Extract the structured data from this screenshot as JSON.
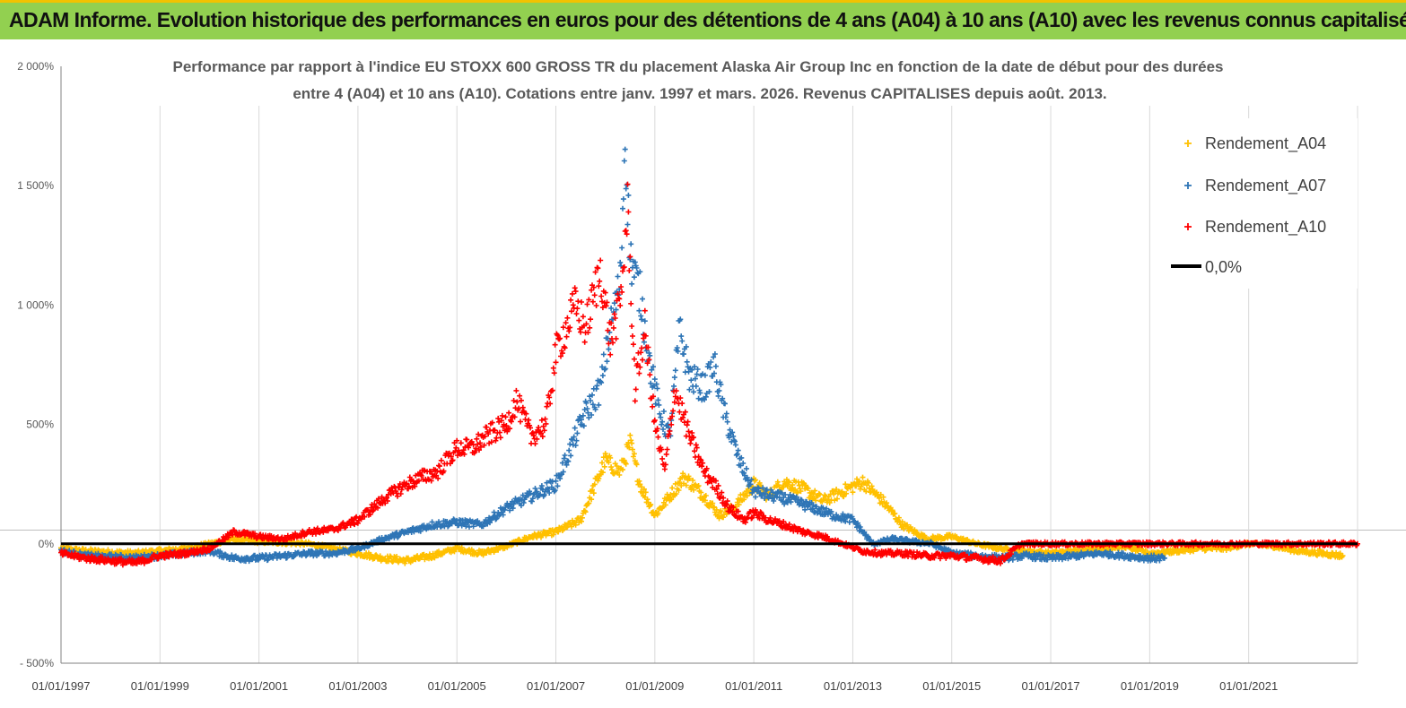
{
  "header": {
    "title": "ADAM Informe. Evolution historique des performances en euros pour des détentions de 4 ans (A04) à 10 ans (A10) avec les revenus connus capitalisés"
  },
  "colors": {
    "banner": "#92d050",
    "A04": "#ffc000",
    "A07": "#2e75b6",
    "A10": "#ff0000",
    "zero": "#000000"
  },
  "chart_data": {
    "type": "scatter",
    "title_line1": "Performance par rapport à l'indice EU STOXX 600 GROSS TR  du placement Alaska Air Group Inc en fonction de la date de début pour des durées",
    "title_line2": "entre 4 (A04) et 10 ans (A10). Cotations entre janv. 1997 et mars. 2026. Revenus CAPITALISES depuis août. 2013.",
    "xlabel": "",
    "ylabel": "",
    "xlim": [
      1997.0,
      2023.2
    ],
    "ylim": [
      -500,
      2000
    ],
    "y_ticks": [
      {
        "value": -500,
        "label": "- 500%"
      },
      {
        "value": 0,
        "label": "0%"
      },
      {
        "value": 500,
        "label": "500%"
      },
      {
        "value": 1000,
        "label": "1 000%"
      },
      {
        "value": 1500,
        "label": "1 500%"
      },
      {
        "value": 2000,
        "label": "2 000%"
      }
    ],
    "x_ticks": [
      {
        "value": 1997,
        "label": "01/01/1997"
      },
      {
        "value": 1999,
        "label": "01/01/1999"
      },
      {
        "value": 2001,
        "label": "01/01/2001"
      },
      {
        "value": 2003,
        "label": "01/01/2003"
      },
      {
        "value": 2005,
        "label": "01/01/2005"
      },
      {
        "value": 2007,
        "label": "01/01/2007"
      },
      {
        "value": 2009,
        "label": "01/01/2009"
      },
      {
        "value": 2011,
        "label": "01/01/2011"
      },
      {
        "value": 2013,
        "label": "01/01/2013"
      },
      {
        "value": 2015,
        "label": "01/01/2015"
      },
      {
        "value": 2017,
        "label": "01/01/2017"
      },
      {
        "value": 2019,
        "label": "01/01/2019"
      },
      {
        "value": 2021,
        "label": "01/01/2021"
      }
    ],
    "grid": "vertical",
    "legend_position": "top-right",
    "legend": [
      "Rendement_A04",
      "Rendement_A07",
      "Rendement_A10",
      "0,0%"
    ],
    "series": [
      {
        "name": "Rendement_A04",
        "marker": "+",
        "x": [
          1997.0,
          1997.5,
          1998.0,
          1998.5,
          1999.0,
          1999.5,
          2000.0,
          2000.5,
          2001.0,
          2001.5,
          2002.0,
          2002.5,
          2003.0,
          2003.5,
          2004.0,
          2004.5,
          2005.0,
          2005.5,
          2006.0,
          2006.5,
          2007.0,
          2007.5,
          2007.8,
          2008.0,
          2008.3,
          2008.5,
          2008.7,
          2009.0,
          2009.3,
          2009.6,
          2010.0,
          2010.3,
          2010.6,
          2011.0,
          2011.3,
          2011.6,
          2012.0,
          2012.4,
          2012.8,
          2013.2,
          2013.6,
          2014.0,
          2014.5,
          2015.0,
          2015.5,
          2016.0,
          2016.5,
          2017.0,
          2017.5,
          2018.0,
          2018.5,
          2019.0,
          2019.5,
          2020.0,
          2020.5,
          2021.0,
          2021.5,
          2022.0,
          2022.5,
          2022.9
        ],
        "y": [
          -20,
          -30,
          -35,
          -40,
          -30,
          -20,
          0,
          20,
          10,
          5,
          0,
          -20,
          -40,
          -60,
          -70,
          -50,
          -20,
          -40,
          -10,
          30,
          50,
          100,
          250,
          350,
          300,
          420,
          250,
          120,
          200,
          280,
          200,
          120,
          150,
          250,
          200,
          260,
          230,
          180,
          220,
          260,
          180,
          80,
          20,
          30,
          0,
          -20,
          -30,
          -40,
          -30,
          -20,
          -10,
          -40,
          -30,
          -20,
          -20,
          0,
          -10,
          -30,
          -40,
          -50
        ]
      },
      {
        "name": "Rendement_A07",
        "marker": "+",
        "x": [
          1997.0,
          1997.5,
          1998.0,
          1998.5,
          1999.0,
          1999.5,
          2000.0,
          2000.5,
          2001.0,
          2001.5,
          2002.0,
          2002.5,
          2003.0,
          2003.5,
          2004.0,
          2004.5,
          2005.0,
          2005.5,
          2006.0,
          2006.5,
          2007.0,
          2007.3,
          2007.6,
          2007.9,
          2008.1,
          2008.3,
          2008.4,
          2008.5,
          2008.7,
          2008.9,
          2009.1,
          2009.3,
          2009.5,
          2009.7,
          2010.0,
          2010.2,
          2010.4,
          2010.7,
          2011.0,
          2011.4,
          2011.8,
          2012.2,
          2012.6,
          2013.0,
          2013.4,
          2013.8,
          2014.2,
          2014.6,
          2015.0,
          2015.5,
          2016.0,
          2016.5,
          2017.0,
          2017.5,
          2018.0,
          2018.5,
          2019.0,
          2019.3
        ],
        "y": [
          -30,
          -50,
          -55,
          -60,
          -50,
          -40,
          -30,
          -60,
          -60,
          -50,
          -40,
          -40,
          -20,
          20,
          50,
          80,
          90,
          80,
          150,
          200,
          250,
          400,
          550,
          650,
          900,
          1100,
          1700,
          1200,
          1050,
          750,
          550,
          450,
          900,
          700,
          650,
          750,
          550,
          350,
          220,
          200,
          180,
          150,
          120,
          100,
          0,
          20,
          10,
          0,
          -40,
          -50,
          -60,
          -50,
          -60,
          -50,
          -40,
          -50,
          -60,
          -60
        ]
      },
      {
        "name": "Rendement_A10",
        "marker": "+",
        "x": [
          1997.0,
          1997.5,
          1998.0,
          1998.5,
          1999.0,
          1999.5,
          2000.0,
          2000.5,
          2001.0,
          2001.5,
          2002.0,
          2002.5,
          2003.0,
          2003.3,
          2003.6,
          2004.0,
          2004.3,
          2004.6,
          2005.0,
          2005.3,
          2005.6,
          2006.0,
          2006.2,
          2006.5,
          2006.8,
          2007.0,
          2007.2,
          2007.4,
          2007.6,
          2007.9,
          2008.1,
          2008.3,
          2008.45,
          2008.6,
          2008.8,
          2009.0,
          2009.2,
          2009.4,
          2009.7,
          2010.0,
          2010.2,
          2010.5,
          2010.8,
          2011.0,
          2011.3,
          2011.6,
          2012.0,
          2012.4,
          2012.8,
          2013.2,
          2013.6,
          2014.0,
          2014.5,
          2015.0,
          2015.5,
          2016.0,
          2016.4,
          2016.8,
          2017.5,
          2018.5,
          2019.5,
          2020.5,
          2021.5,
          2022.5,
          2023.2
        ],
        "y": [
          -40,
          -60,
          -70,
          -80,
          -50,
          -40,
          -20,
          50,
          30,
          20,
          50,
          60,
          100,
          150,
          200,
          250,
          280,
          300,
          400,
          400,
          450,
          500,
          600,
          450,
          500,
          800,
          900,
          1000,
          900,
          1150,
          850,
          1000,
          1400,
          650,
          900,
          500,
          300,
          650,
          450,
          300,
          250,
          150,
          100,
          130,
          100,
          80,
          50,
          30,
          0,
          -30,
          -40,
          -40,
          -50,
          -50,
          -60,
          -70,
          0,
          0,
          0,
          0,
          0,
          0,
          0,
          0,
          0
        ]
      }
    ],
    "reference_line": {
      "name": "0,0%",
      "y": 0
    }
  }
}
